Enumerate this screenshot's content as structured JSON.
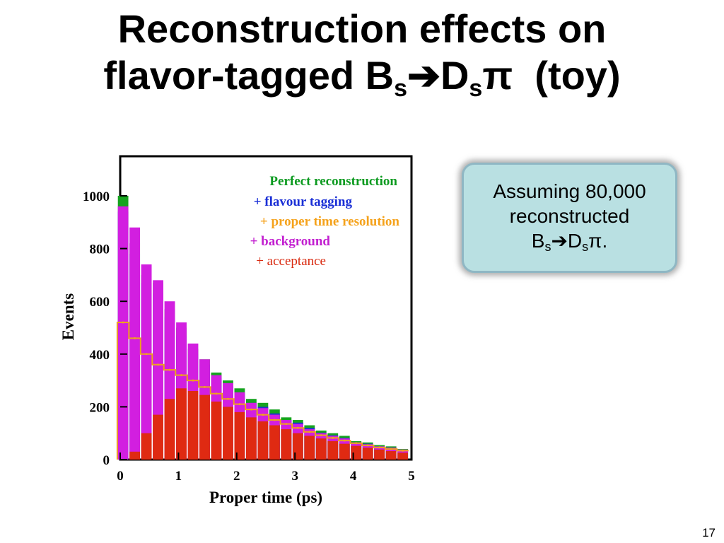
{
  "slide": {
    "title_line1": "Reconstruction effects on",
    "title_line2_prefix": "flavor-tagged B",
    "title_sub_s1": "s",
    "title_arrow": "➔",
    "title_d": "D",
    "title_sub_s2": "s",
    "title_pi": "π",
    "title_toy": "  (toy)",
    "note_line1": "Assuming 80,000",
    "note_line2": "reconstructed",
    "note_b": "B",
    "note_sub_s1": "s",
    "note_arrow": "➔",
    "note_d": "D",
    "note_sub_s2": "s",
    "note_pi": "π.",
    "page_number": "17"
  },
  "chart_data": {
    "type": "bar",
    "title": "",
    "xlabel": "Proper time  (ps)",
    "ylabel": "Events",
    "xlim": [
      0,
      5
    ],
    "ylim": [
      0,
      1150
    ],
    "x_ticks": [
      "0",
      "1",
      "2",
      "3",
      "4",
      "5"
    ],
    "y_ticks": [
      "0",
      "200",
      "400",
      "600",
      "800",
      "1000"
    ],
    "legend_position": "top-right",
    "legend": [
      {
        "label": "Perfect reconstruction",
        "color": "#0b9a1f",
        "bold": true
      },
      {
        "label": "+ flavour tagging",
        "color": "#1a2fd6",
        "bold": true
      },
      {
        "label": "+ proper time resolution",
        "color": "#f5a21b",
        "bold": true
      },
      {
        "label": "+ background",
        "color": "#c21fd0",
        "bold": true
      },
      {
        "label": "+ acceptance",
        "color": "#d92a10",
        "bold": false
      }
    ],
    "series": [
      {
        "name": "Perfect reconstruction",
        "color": "#16a31f",
        "x": [
          0.05,
          0.25,
          0.45,
          0.65,
          0.85,
          1.05,
          1.25,
          1.45,
          1.65,
          1.85,
          2.05,
          2.25,
          2.45,
          2.65,
          2.85,
          3.05,
          3.25,
          3.45,
          3.65,
          3.85,
          4.05,
          4.25,
          4.45,
          4.65,
          4.85
        ],
        "values": [
          1000,
          820,
          700,
          670,
          570,
          500,
          420,
          380,
          330,
          300,
          270,
          230,
          215,
          190,
          160,
          150,
          130,
          110,
          100,
          90,
          70,
          65,
          55,
          50,
          40
        ]
      },
      {
        "name": "+ flavour tagging",
        "color": "#1f2fd2",
        "x": [
          0.05,
          0.25,
          0.45,
          0.65,
          0.85,
          1.05,
          1.25,
          1.45,
          1.65,
          1.85,
          2.05,
          2.25,
          2.45,
          2.65,
          2.85,
          3.05,
          3.25,
          3.45,
          3.65,
          3.85,
          4.05,
          4.25,
          4.45,
          4.65,
          4.85
        ],
        "values": [
          940,
          780,
          670,
          630,
          540,
          470,
          400,
          360,
          310,
          280,
          250,
          215,
          200,
          175,
          150,
          140,
          120,
          102,
          92,
          82,
          65,
          60,
          50,
          45,
          36
        ]
      },
      {
        "name": "+ background",
        "color": "#d21fe0",
        "x": [
          0.05,
          0.25,
          0.45,
          0.65,
          0.85,
          1.05,
          1.25,
          1.45,
          1.65,
          1.85,
          2.05,
          2.25,
          2.45,
          2.65,
          2.85,
          3.05,
          3.25,
          3.45,
          3.65,
          3.85,
          4.05,
          4.25,
          4.45,
          4.65,
          4.85
        ],
        "values": [
          960,
          880,
          740,
          680,
          600,
          520,
          440,
          380,
          320,
          290,
          255,
          215,
          195,
          170,
          150,
          135,
          115,
          100,
          90,
          80,
          65,
          58,
          50,
          45,
          38
        ]
      },
      {
        "name": "+ acceptance",
        "color": "#df2a12",
        "x": [
          0.05,
          0.25,
          0.45,
          0.65,
          0.85,
          1.05,
          1.25,
          1.45,
          1.65,
          1.85,
          2.05,
          2.25,
          2.45,
          2.65,
          2.85,
          3.05,
          3.25,
          3.45,
          3.65,
          3.85,
          4.05,
          4.25,
          4.45,
          4.65,
          4.85
        ],
        "values": [
          0,
          30,
          100,
          170,
          230,
          270,
          260,
          245,
          220,
          200,
          180,
          160,
          145,
          130,
          115,
          100,
          90,
          80,
          70,
          60,
          52,
          45,
          38,
          32,
          26
        ]
      },
      {
        "name": "+ proper time resolution",
        "color": "#f0a020",
        "x": [
          0.05,
          0.25,
          0.45,
          0.65,
          0.85,
          1.05,
          1.25,
          1.45,
          1.65,
          1.85,
          2.05,
          2.25,
          2.45,
          2.65,
          2.85,
          3.05,
          3.25,
          3.45,
          3.65,
          3.85,
          4.05,
          4.25,
          4.45,
          4.65,
          4.85
        ],
        "values": [
          520,
          460,
          400,
          360,
          340,
          320,
          300,
          275,
          250,
          230,
          210,
          190,
          170,
          150,
          135,
          120,
          105,
          92,
          82,
          72,
          62,
          54,
          46,
          40,
          34
        ]
      }
    ]
  }
}
